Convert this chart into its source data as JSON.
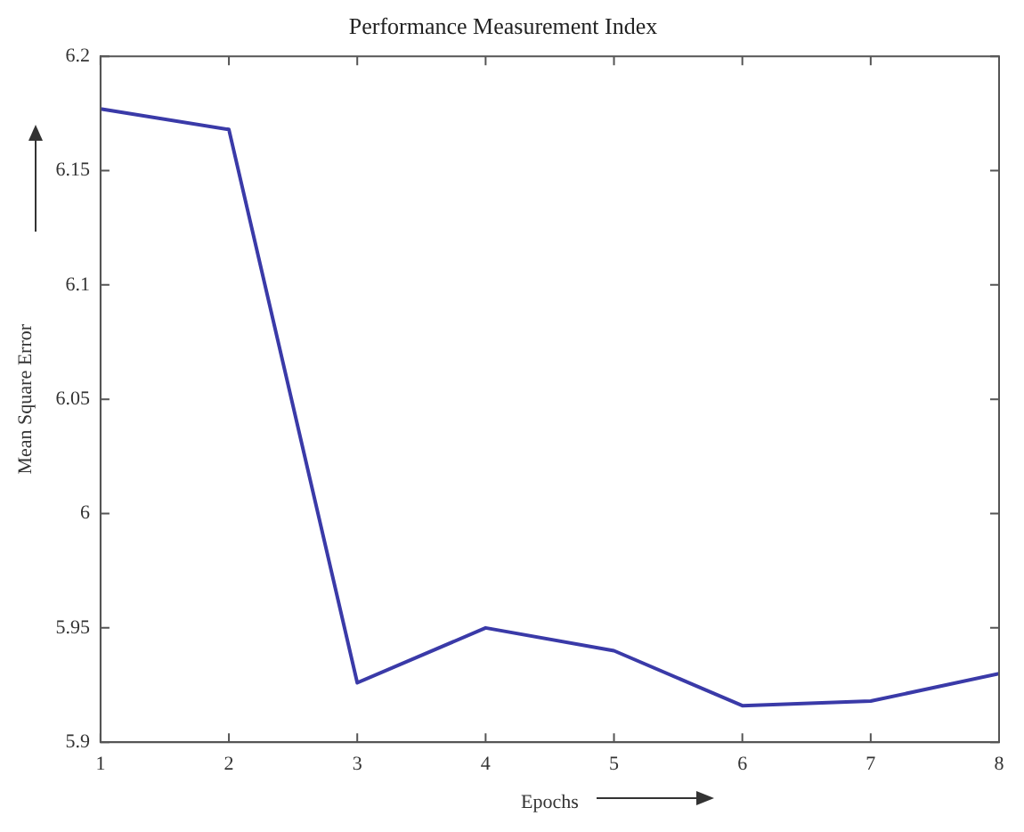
{
  "chart_data": {
    "type": "line",
    "title": "Performance Measurement Index",
    "xlabel": "Epochs",
    "ylabel": "Mean Square Error",
    "x": [
      1,
      2,
      3,
      4,
      5,
      6,
      7,
      8
    ],
    "series": [
      {
        "color": "#3a3aa8",
        "values": [
          6.177,
          6.168,
          5.926,
          5.95,
          5.94,
          5.916,
          5.918,
          5.93
        ]
      }
    ],
    "xlim": [
      1,
      8
    ],
    "xticks": [
      1,
      2,
      3,
      4,
      5,
      6,
      7,
      8
    ],
    "ylim": [
      5.9,
      6.2
    ],
    "yticks": [
      {
        "value": 5.9,
        "label": "5.9"
      },
      {
        "value": 5.95,
        "label": "5.95"
      },
      {
        "value": 6,
        "label": "6"
      },
      {
        "value": 6.05,
        "label": "6.05"
      },
      {
        "value": 6.1,
        "label": "6.1"
      },
      {
        "value": 6.15,
        "label": "6.15"
      },
      {
        "value": 6.2,
        "label": "6.2"
      }
    ],
    "grid": false,
    "legend": false,
    "marker": "none",
    "line_style": "solid"
  }
}
